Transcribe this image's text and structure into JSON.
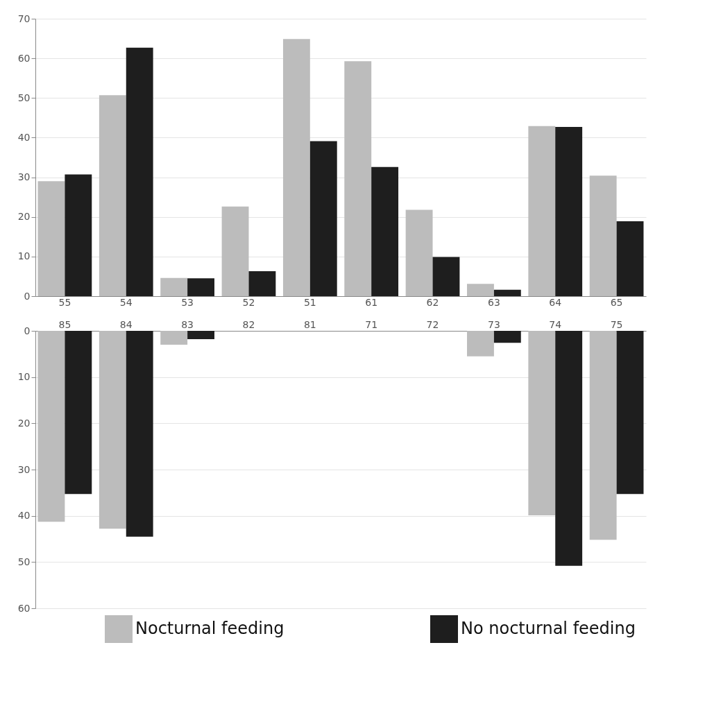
{
  "chart_data": [
    {
      "type": "bar",
      "categories": [
        "55",
        "54",
        "53",
        "52",
        "51",
        "61",
        "62",
        "63",
        "64",
        "65"
      ],
      "series": [
        {
          "color": "#bcbcbc",
          "values": [
            29,
            50.7,
            4.6,
            22.6,
            64.9,
            59.3,
            21.8,
            3.1,
            42.9,
            30.4
          ]
        },
        {
          "color": "#1e1e1e",
          "values": [
            30.7,
            62.7,
            4.5,
            6.3,
            39.1,
            32.6,
            9.9,
            1.6,
            42.7,
            18.9
          ]
        }
      ],
      "ylim": [
        0,
        70
      ],
      "yticks": [
        0,
        10,
        20,
        30,
        40,
        50,
        60,
        70
      ],
      "grid": "y"
    },
    {
      "type": "bar",
      "categories": [
        "85",
        "84",
        "83",
        "82",
        "81",
        "71",
        "72",
        "73",
        "74",
        "75"
      ],
      "series": [
        {
          "name": "Nocturnal feeding",
          "color": "#bcbcbc",
          "values": [
            41.3,
            42.8,
            3,
            0,
            0,
            0,
            0,
            5.5,
            39.9,
            45.2
          ]
        },
        {
          "name": "No nocturnal feeding",
          "color": "#1e1e1e",
          "values": [
            35.3,
            44.5,
            1.8,
            0,
            0,
            0,
            0,
            2.6,
            50.8,
            35.3
          ]
        }
      ],
      "ylim": [
        60,
        0
      ],
      "yticks": [
        0,
        10,
        20,
        30,
        40,
        50,
        60
      ],
      "grid": "y",
      "legend": "bottom"
    }
  ]
}
